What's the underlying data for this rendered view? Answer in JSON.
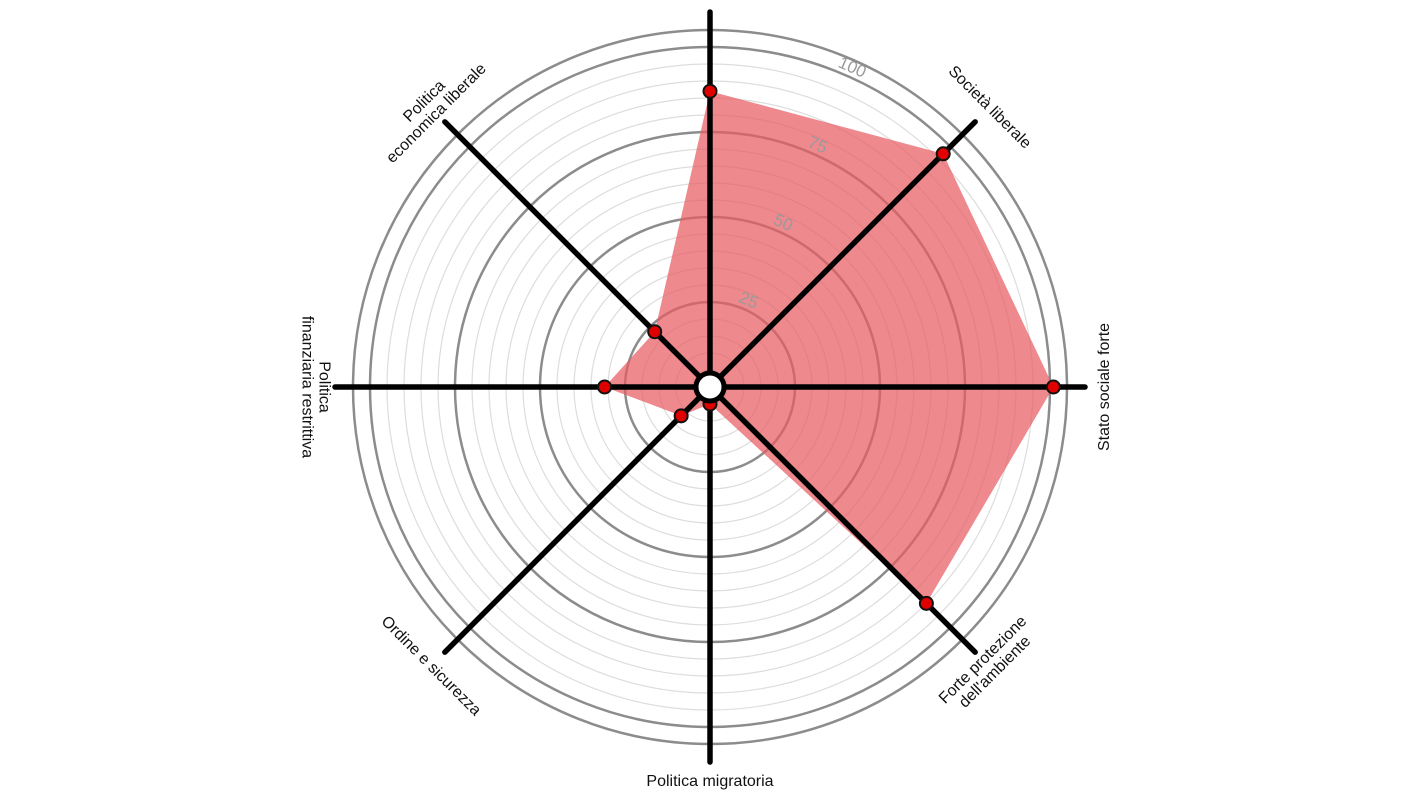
{
  "chart_data": {
    "type": "radar",
    "title": "",
    "rmax": 100,
    "ticks": [
      25,
      50,
      75,
      100
    ],
    "tick_labels": [
      "25",
      "50",
      "75",
      "100"
    ],
    "grid": true,
    "axes": [
      {
        "label_lines": [
          "Politica migratoria"
        ],
        "value": 5
      },
      {
        "label_lines": [
          "Ordine e sicurezza"
        ],
        "value": 12
      },
      {
        "label_lines": [
          "Politica",
          "finanziaria restrittiva"
        ],
        "value": 31
      },
      {
        "label_lines": [
          "Politica",
          "economica liberale"
        ],
        "value": 23
      },
      {
        "label_lines": [],
        "value": 87
      },
      {
        "label_lines": [
          "Società liberale"
        ],
        "value": 97
      },
      {
        "label_lines": [
          "Stato sociale forte"
        ],
        "value": 101
      },
      {
        "label_lines": [
          "Forte protezione",
          "dell'ambiente"
        ],
        "value": 90
      }
    ],
    "fill_color": "#e85c62",
    "point_color": "#e00000"
  }
}
